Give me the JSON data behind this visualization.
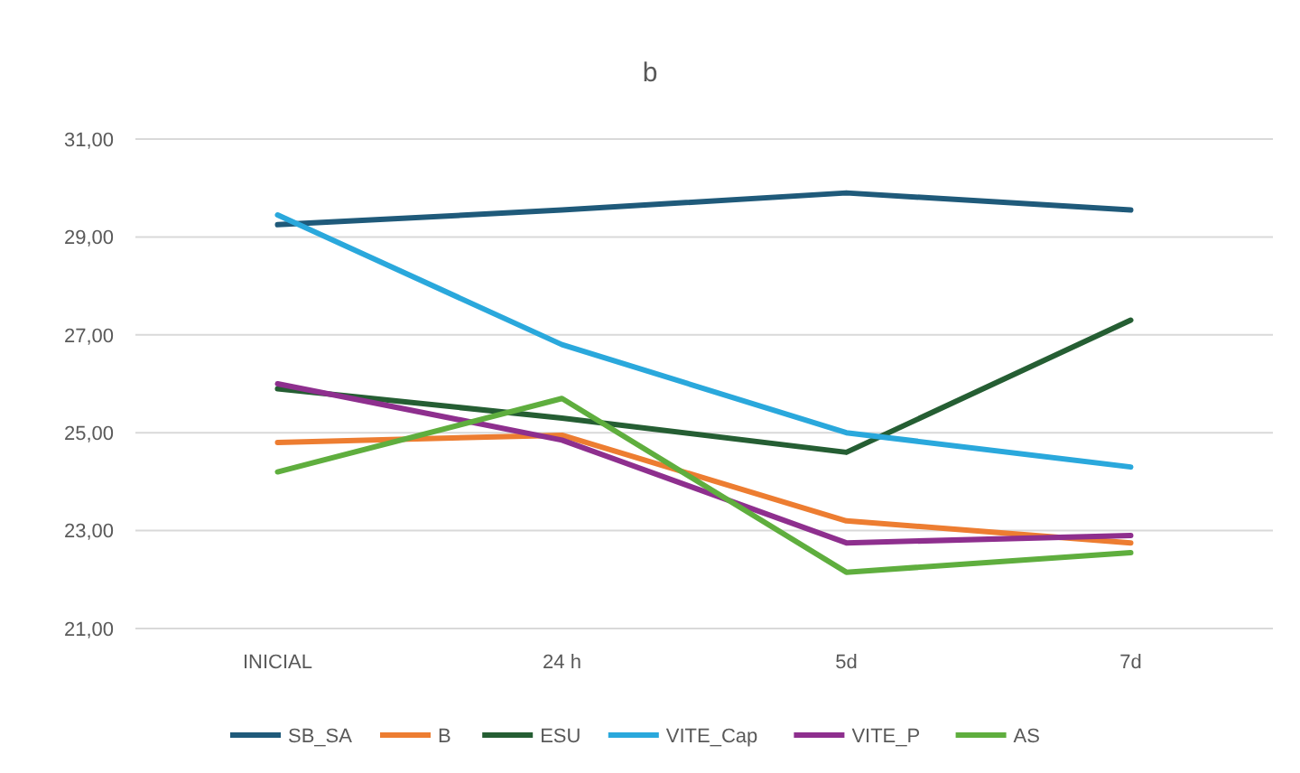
{
  "chart_data": {
    "type": "line",
    "title": "b",
    "categories": [
      "INICIAL",
      "24 h",
      "5d",
      "7d"
    ],
    "series": [
      {
        "name": "SB_SA",
        "color": "#1f5a7a",
        "values": [
          29.25,
          29.55,
          29.9,
          29.55
        ]
      },
      {
        "name": "B",
        "color": "#ed7d31",
        "values": [
          24.8,
          24.95,
          23.2,
          22.75
        ]
      },
      {
        "name": "ESU",
        "color": "#255e33",
        "values": [
          25.9,
          25.3,
          24.6,
          27.3
        ]
      },
      {
        "name": "VITE_Cap",
        "color": "#2aa8dc",
        "values": [
          29.45,
          26.8,
          25.0,
          24.3
        ]
      },
      {
        "name": "VITE_P",
        "color": "#8e2f8e",
        "values": [
          26.0,
          24.85,
          22.75,
          22.9
        ]
      },
      {
        "name": "AS",
        "color": "#5fae3e",
        "values": [
          24.2,
          25.7,
          22.15,
          22.55
        ]
      }
    ],
    "ylim": [
      21,
      31
    ],
    "yticks": [
      {
        "value": 21,
        "label": "21,00"
      },
      {
        "value": 23,
        "label": "23,00"
      },
      {
        "value": 25,
        "label": "25,00"
      },
      {
        "value": 27,
        "label": "27,00"
      },
      {
        "value": 29,
        "label": "29,00"
      },
      {
        "value": 31,
        "label": "31,00"
      }
    ],
    "grid": "y",
    "legend": "bottom",
    "marker": "none",
    "line_style": "solid"
  }
}
